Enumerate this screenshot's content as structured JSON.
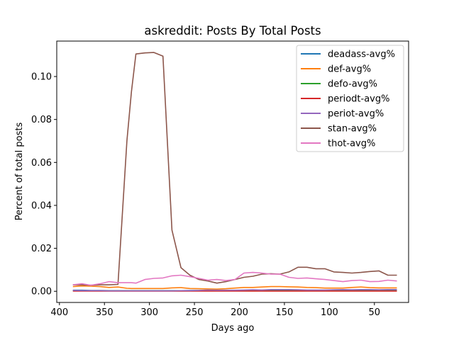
{
  "chart_data": {
    "type": "line",
    "title": "askreddit: Posts By Total Posts",
    "xlabel": "Days ago",
    "ylabel": "Percent of total posts",
    "xlim": [
      403,
      12
    ],
    "ylim": [
      -0.0052,
      0.1165
    ],
    "xticks": [
      400,
      350,
      300,
      250,
      200,
      150,
      100,
      50
    ],
    "yticks": [
      0.0,
      0.02,
      0.04,
      0.06,
      0.08,
      0.1
    ],
    "ytick_labels": [
      "0.00",
      "0.02",
      "0.04",
      "0.06",
      "0.08",
      "0.10"
    ],
    "legend_position": "top-right",
    "grid": false,
    "x": [
      385,
      375,
      365,
      355,
      345,
      335,
      325,
      320,
      315,
      305,
      295,
      285,
      275,
      265,
      255,
      245,
      235,
      225,
      215,
      205,
      195,
      185,
      175,
      165,
      155,
      145,
      135,
      125,
      115,
      105,
      95,
      85,
      75,
      65,
      55,
      45,
      35,
      25
    ],
    "series": [
      {
        "name": "deadass-avg%",
        "color": "#1f77b4",
        "values": [
          0.0005,
          0.0005,
          0.0004,
          0.0004,
          0.0003,
          0.0003,
          0.0003,
          0.0003,
          0.0003,
          0.0003,
          0.0003,
          0.0003,
          0.0003,
          0.0003,
          0.0004,
          0.0004,
          0.0004,
          0.0004,
          0.0004,
          0.0004,
          0.0004,
          0.0004,
          0.0004,
          0.0004,
          0.0004,
          0.0004,
          0.0004,
          0.0004,
          0.0004,
          0.0004,
          0.0004,
          0.0004,
          0.0004,
          0.0004,
          0.0004,
          0.0004,
          0.0004,
          0.0004
        ]
      },
      {
        "name": "def-avg%",
        "color": "#ff7f0e",
        "values": [
          0.0022,
          0.0025,
          0.0024,
          0.0022,
          0.0018,
          0.002,
          0.0014,
          0.0013,
          0.0013,
          0.0013,
          0.0013,
          0.0013,
          0.0016,
          0.0017,
          0.0013,
          0.0012,
          0.0011,
          0.001,
          0.0012,
          0.0015,
          0.0018,
          0.0018,
          0.002,
          0.0022,
          0.0022,
          0.0021,
          0.002,
          0.0018,
          0.0017,
          0.0015,
          0.0015,
          0.0015,
          0.0018,
          0.002,
          0.0017,
          0.0016,
          0.0016,
          0.0016
        ]
      },
      {
        "name": "defo-avg%",
        "color": "#2ca02c",
        "values": [
          0.0002,
          0.0002,
          0.0002,
          0.0002,
          0.0002,
          0.0002,
          0.0002,
          0.0002,
          0.0002,
          0.0002,
          0.0002,
          0.0002,
          0.0002,
          0.0002,
          0.0002,
          0.0002,
          0.0002,
          0.0002,
          0.0002,
          0.0002,
          0.0002,
          0.0002,
          0.0002,
          0.0002,
          0.0002,
          0.0002,
          0.0002,
          0.0002,
          0.0002,
          0.0002,
          0.0002,
          0.0002,
          0.0002,
          0.0002,
          0.0002,
          0.0002,
          0.0002,
          0.0002
        ]
      },
      {
        "name": "periodt-avg%",
        "color": "#d62728",
        "values": [
          0.0001,
          0.0001,
          0.0001,
          0.0001,
          0.0001,
          0.0001,
          0.0001,
          0.0001,
          0.0001,
          0.0001,
          0.0001,
          0.0001,
          0.0001,
          0.0001,
          0.0001,
          0.0001,
          0.0001,
          0.0001,
          0.0001,
          0.0001,
          0.0001,
          0.0001,
          0.0001,
          0.0001,
          0.0001,
          0.0001,
          0.0001,
          0.0001,
          0.0001,
          0.0001,
          0.0001,
          0.0001,
          0.0001,
          0.0001,
          0.0001,
          0.0001,
          0.0001,
          0.0001
        ]
      },
      {
        "name": "periot-avg%",
        "color": "#9467bd",
        "values": [
          0.0004,
          0.0003,
          0.0003,
          0.0003,
          0.0002,
          0.0002,
          0.0002,
          0.0002,
          0.0002,
          0.0002,
          0.0002,
          0.0002,
          0.0002,
          0.0003,
          0.0003,
          0.0004,
          0.0006,
          0.0005,
          0.0005,
          0.0005,
          0.0006,
          0.0007,
          0.0006,
          0.0008,
          0.0008,
          0.0008,
          0.0007,
          0.0006,
          0.0006,
          0.0006,
          0.0007,
          0.0008,
          0.0007,
          0.0008,
          0.0008,
          0.0007,
          0.0008,
          0.0008
        ]
      },
      {
        "name": "stan-avg%",
        "color": "#8c564b",
        "values": [
          0.003,
          0.003,
          0.0028,
          0.003,
          0.003,
          0.0032,
          0.07,
          0.093,
          0.1105,
          0.111,
          0.1112,
          0.1095,
          0.0285,
          0.011,
          0.0075,
          0.0055,
          0.0048,
          0.0038,
          0.0045,
          0.0055,
          0.0065,
          0.007,
          0.008,
          0.0082,
          0.008,
          0.009,
          0.0112,
          0.0112,
          0.0105,
          0.0105,
          0.009,
          0.0088,
          0.0085,
          0.0088,
          0.0092,
          0.0095,
          0.0075,
          0.0075
        ]
      },
      {
        "name": "thot-avg%",
        "color": "#e377c2",
        "values": [
          0.003,
          0.0035,
          0.0028,
          0.0035,
          0.0045,
          0.004,
          0.004,
          0.004,
          0.0038,
          0.0055,
          0.006,
          0.0062,
          0.0072,
          0.0075,
          0.0068,
          0.006,
          0.0052,
          0.0055,
          0.005,
          0.0055,
          0.0085,
          0.0088,
          0.0085,
          0.008,
          0.008,
          0.0065,
          0.006,
          0.0062,
          0.0058,
          0.0055,
          0.005,
          0.0045,
          0.005,
          0.0052,
          0.0045,
          0.0046,
          0.0052,
          0.0048
        ]
      }
    ]
  }
}
